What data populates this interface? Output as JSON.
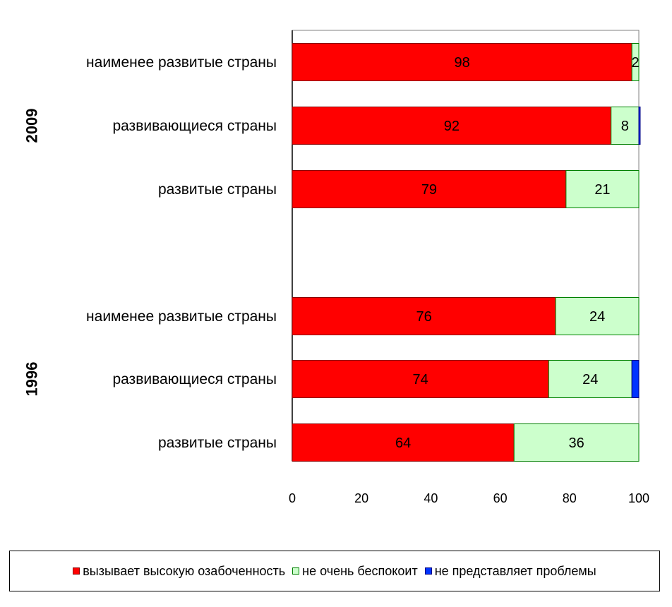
{
  "chart_data": {
    "type": "bar",
    "orientation": "horizontal",
    "stacked": true,
    "groups": [
      {
        "name": "2009",
        "categories": [
          "наименее развитые страны",
          "развивающиеся страны",
          "развитые страны"
        ],
        "series_values": [
          [
            98,
            2,
            0
          ],
          [
            92,
            8,
            0.4
          ],
          [
            79,
            21,
            0
          ]
        ]
      },
      {
        "name": "1996",
        "categories": [
          "наименее развитые страны",
          "развивающиеся страны",
          "развитые страны"
        ],
        "series_values": [
          [
            76,
            24,
            0
          ],
          [
            74,
            24,
            2
          ],
          [
            64,
            36,
            0
          ]
        ]
      }
    ],
    "series": [
      {
        "name": "вызывает высокую озабоченность",
        "color": "#ff0000",
        "edge": "#8b0000"
      },
      {
        "name": "не очень беспокоит",
        "color": "#ccffcc",
        "edge": "#008000"
      },
      {
        "name": "не представляет проблемы",
        "color": "#0033ff",
        "edge": "#000080"
      }
    ],
    "data_labels": [
      [
        "98",
        "2",
        ""
      ],
      [
        "92",
        "8",
        ""
      ],
      [
        "79",
        "21",
        ""
      ],
      [
        "76",
        "24",
        ""
      ],
      [
        "74",
        "24",
        ""
      ],
      [
        "64",
        "36",
        ""
      ]
    ],
    "xlim": [
      0,
      100
    ],
    "xticks": [
      0,
      20,
      40,
      60,
      80,
      100
    ],
    "grid": false,
    "legend_position": "bottom"
  }
}
